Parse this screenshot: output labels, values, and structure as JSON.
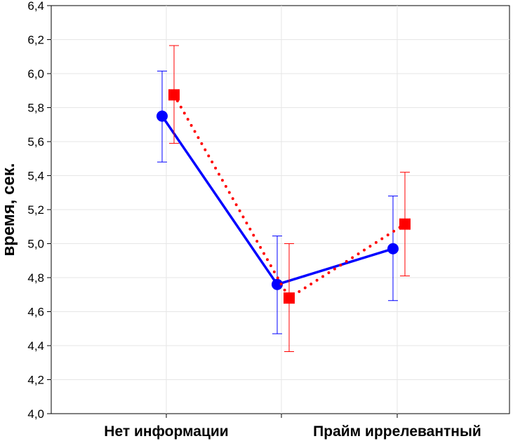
{
  "chart_data": {
    "type": "line",
    "title": "",
    "xlabel": "",
    "ylabel": "время, сек.",
    "ylim": [
      4.0,
      6.4
    ],
    "yticks": [
      "4,0",
      "4,2",
      "4,4",
      "4,6",
      "4,8",
      "5,0",
      "5,2",
      "5,4",
      "5,6",
      "5,8",
      "6,0",
      "6,2",
      "6,4"
    ],
    "ytick_values": [
      4.0,
      4.2,
      4.4,
      4.6,
      4.8,
      5.0,
      5.2,
      5.4,
      5.6,
      5.8,
      6.0,
      6.2,
      6.4
    ],
    "categories": [
      "Нет информации",
      "",
      "Прайм иррелевантный"
    ],
    "grid": true,
    "series": [
      {
        "color": "#0000ff",
        "line_style": "solid",
        "marker": "circle",
        "values": [
          5.75,
          4.76,
          4.97
        ],
        "err_low": [
          5.48,
          4.47,
          4.665
        ],
        "err_high": [
          6.015,
          5.045,
          5.28
        ]
      },
      {
        "color": "#ff0000",
        "line_style": "dotted",
        "marker": "square",
        "values": [
          5.875,
          4.68,
          5.115
        ],
        "err_low": [
          5.59,
          4.365,
          4.81
        ],
        "err_high": [
          6.165,
          5.0,
          5.42
        ]
      }
    ]
  }
}
